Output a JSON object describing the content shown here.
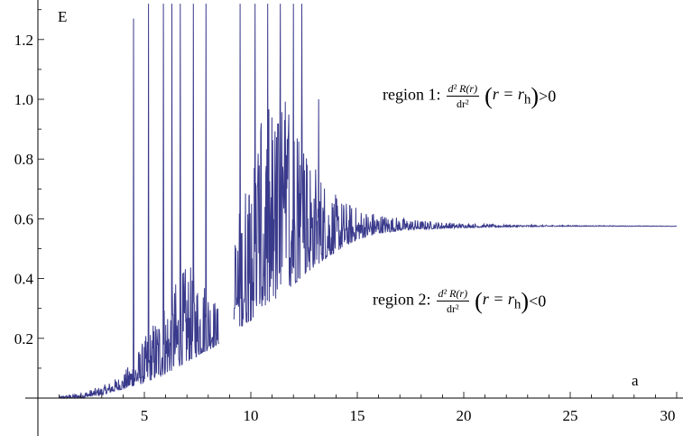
{
  "chart_data": {
    "type": "line",
    "xlabel": "a",
    "ylabel": "E",
    "xlim": [
      0,
      30
    ],
    "ylim": [
      -0.03,
      1.32
    ],
    "x_ticks": [
      "5",
      "10",
      "15",
      "20",
      "25",
      "30"
    ],
    "y_ticks": [
      "0.2",
      "0.4",
      "0.6",
      "0.8",
      "1.0",
      "1.2"
    ],
    "color": "#3a3a8c",
    "asymptote": 0.575,
    "gap_x": [
      8.5,
      9.2
    ],
    "series": [
      {
        "envelope_x": [
          1.0,
          2.0,
          3.0,
          4.0,
          5.0,
          6.0,
          7.0,
          8.0,
          8.5,
          9.2,
          10,
          11,
          12,
          13,
          14,
          15,
          16,
          17,
          18,
          20,
          22,
          25,
          30
        ],
        "envelope_lower": [
          0.0,
          0.0,
          0.01,
          0.03,
          0.05,
          0.08,
          0.12,
          0.16,
          0.18,
          0.22,
          0.26,
          0.32,
          0.38,
          0.44,
          0.49,
          0.53,
          0.55,
          0.56,
          0.565,
          0.57,
          0.573,
          0.575,
          0.575
        ],
        "envelope_upper": [
          0.005,
          0.02,
          0.04,
          0.08,
          0.2,
          0.35,
          0.45,
          0.4,
          0.3,
          0.55,
          0.85,
          1.0,
          1.0,
          0.8,
          0.68,
          0.64,
          0.62,
          0.605,
          0.595,
          0.585,
          0.58,
          0.578,
          0.576
        ],
        "spikes": [
          {
            "x": 4.5,
            "y": 1.27
          },
          {
            "x": 5.2,
            "y": 1.32
          },
          {
            "x": 5.9,
            "y": 1.32
          },
          {
            "x": 6.3,
            "y": 1.32
          },
          {
            "x": 6.7,
            "y": 1.32
          },
          {
            "x": 7.3,
            "y": 1.32
          },
          {
            "x": 7.9,
            "y": 1.32
          },
          {
            "x": 9.5,
            "y": 1.32
          },
          {
            "x": 10.2,
            "y": 1.32
          },
          {
            "x": 10.8,
            "y": 1.32
          },
          {
            "x": 11.4,
            "y": 1.32
          },
          {
            "x": 12.0,
            "y": 1.32
          },
          {
            "x": 12.4,
            "y": 1.32
          },
          {
            "x": 13.2,
            "y": 1.0
          }
        ]
      }
    ]
  },
  "annotations": {
    "region1": {
      "lead": "region 1:",
      "numerator": "d² R(r)",
      "denominator": "dr²",
      "lparen": "(",
      "condition": "r = r",
      "subscript": "h",
      "rparen": ")",
      "inequality": ">0"
    },
    "region2": {
      "lead": "region 2:",
      "numerator": "d² R(r)",
      "denominator": "dr²",
      "lparen": "(",
      "condition": "r = r",
      "subscript": "h",
      "rparen": ")",
      "inequality": "<0"
    }
  }
}
